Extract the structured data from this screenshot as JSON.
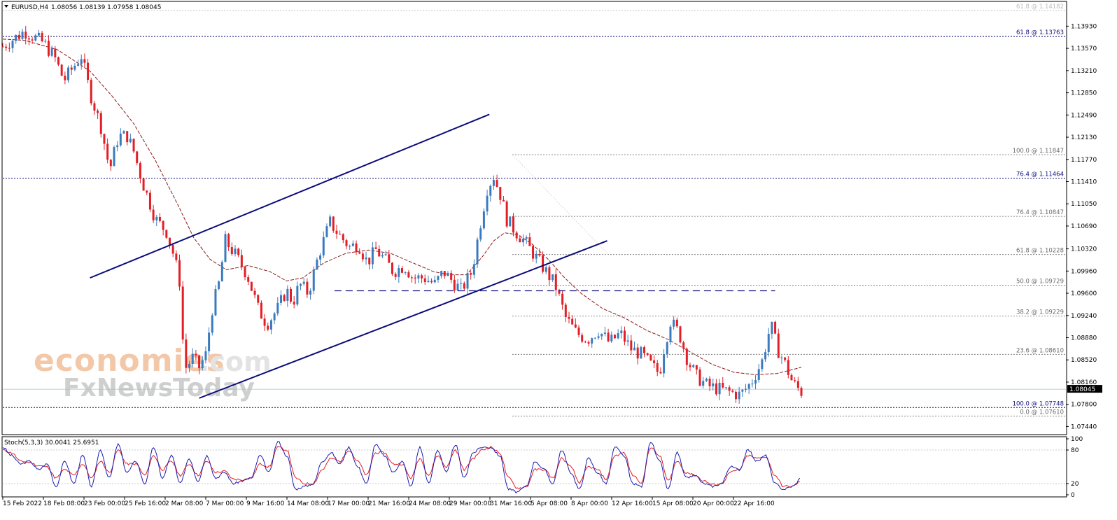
{
  "header": {
    "symbol": "EURUSD,H4",
    "ohlc": "1.08056 1.08139 1.07958 1.08045"
  },
  "watermark": {
    "line1": "economies",
    "line1_suffix": ".com",
    "line2": "FxNewsToday"
  },
  "colors": {
    "bull": "#3a7bbf",
    "bear": "#e21e26",
    "ma": "#8b1a1a",
    "channel": "#0b0b7a",
    "stoch_main": "#1c1cb0",
    "stoch_signal": "#e21e26",
    "fib": "#6b6b6b"
  },
  "chart_data": [
    {
      "type": "candlestick",
      "title": "EURUSD,H4",
      "ohlc_label": "1.08056 1.08139 1.07958 1.08045",
      "ylim": [
        1.0732,
        1.1432
      ],
      "y_ticks": [
        "1.13930",
        "1.13570",
        "1.13210",
        "1.12850",
        "1.12490",
        "1.12130",
        "1.11770",
        "1.11410",
        "1.11050",
        "1.10690",
        "1.10320",
        "1.09960",
        "1.09600",
        "1.09240",
        "1.08880",
        "1.08520",
        "1.08160",
        "1.07800",
        "1.07440"
      ],
      "x_ticks": [
        "15 Feb 2022",
        "18 Feb 08:00",
        "23 Feb 00:00",
        "25 Feb 16:00",
        "2 Mar 08:00",
        "7 Mar 00:00",
        "9 Mar 16:00",
        "14 Mar 08:00",
        "17 Mar 00:00",
        "21 Mar 16:00",
        "24 Mar 08:00",
        "29 Mar 00:00",
        "31 Mar 16:00",
        "5 Apr 08:00",
        "8 Apr 00:00",
        "12 Apr 16:00",
        "15 Apr 08:00",
        "20 Apr 00:00",
        "22 Apr 16:00"
      ],
      "current_price": "1.08045",
      "path": [
        [
          0,
          1.136
        ],
        [
          20,
          1.1385
        ],
        [
          38,
          1.1365
        ],
        [
          48,
          1.134
        ],
        [
          56,
          1.1305
        ],
        [
          66,
          1.133
        ],
        [
          72,
          1.1345
        ],
        [
          80,
          1.1285
        ],
        [
          90,
          1.123
        ],
        [
          98,
          1.116
        ],
        [
          106,
          1.1215
        ],
        [
          114,
          1.1215
        ],
        [
          120,
          1.119
        ],
        [
          128,
          1.114
        ],
        [
          140,
          1.108
        ],
        [
          150,
          1.106
        ],
        [
          157,
          1.102
        ],
        [
          162,
          1.098
        ],
        [
          164,
          1.09
        ],
        [
          168,
          1.084
        ],
        [
          174,
          1.0855
        ],
        [
          180,
          1.084
        ],
        [
          186,
          1.086
        ],
        [
          192,
          1.0935
        ],
        [
          198,
          1.0975
        ],
        [
          204,
          1.1045
        ],
        [
          214,
          1.102
        ],
        [
          224,
          1.099
        ],
        [
          234,
          1.0935
        ],
        [
          242,
          1.091
        ],
        [
          252,
          1.0935
        ],
        [
          260,
          1.0965
        ],
        [
          266,
          1.0945
        ],
        [
          272,
          1.0975
        ],
        [
          280,
          1.096
        ],
        [
          290,
          1.1025
        ],
        [
          300,
          1.1075
        ],
        [
          308,
          1.1055
        ],
        [
          318,
          1.1035
        ],
        [
          326,
          1.104
        ],
        [
          334,
          1.101
        ],
        [
          342,
          1.103
        ],
        [
          350,
          1.1015
        ],
        [
          358,
          1.0995
        ],
        [
          368,
          1.1005
        ],
        [
          376,
          1.0985
        ],
        [
          386,
          1.0985
        ],
        [
          396,
          1.0975
        ],
        [
          404,
          1.0995
        ],
        [
          412,
          1.098
        ],
        [
          420,
          1.0965
        ],
        [
          430,
          1.0995
        ],
        [
          438,
          1.1075
        ],
        [
          444,
          1.113
        ],
        [
          450,
          1.115
        ],
        [
          456,
          1.112
        ],
        [
          462,
          1.108
        ],
        [
          470,
          1.106
        ],
        [
          478,
          1.1045
        ],
        [
          486,
          1.1025
        ],
        [
          496,
          1.1
        ],
        [
          506,
          1.0975
        ],
        [
          516,
          1.092
        ],
        [
          526,
          1.0895
        ],
        [
          536,
          1.0885
        ],
        [
          546,
          1.09
        ],
        [
          556,
          1.088
        ],
        [
          566,
          1.0895
        ],
        [
          576,
          1.087
        ],
        [
          586,
          1.086
        ],
        [
          596,
          1.084
        ],
        [
          602,
          1.083
        ],
        [
          606,
          1.087
        ],
        [
          612,
          1.0915
        ],
        [
          620,
          1.0895
        ],
        [
          628,
          1.085
        ],
        [
          636,
          1.0825
        ],
        [
          646,
          1.081
        ],
        [
          656,
          1.0805
        ],
        [
          666,
          1.08
        ],
        [
          676,
          1.0795
        ],
        [
          686,
          1.0815
        ],
        [
          696,
          1.085
        ],
        [
          704,
          1.091
        ],
        [
          710,
          1.087
        ],
        [
          716,
          1.085
        ],
        [
          724,
          1.0815
        ],
        [
          732,
          1.08
        ]
      ],
      "ma_path": [
        [
          0,
          1.1372
        ],
        [
          20,
          1.137
        ],
        [
          50,
          1.1355
        ],
        [
          80,
          1.132
        ],
        [
          100,
          1.128
        ],
        [
          120,
          1.1235
        ],
        [
          140,
          1.1175
        ],
        [
          160,
          1.1105
        ],
        [
          175,
          1.105
        ],
        [
          190,
          1.1015
        ],
        [
          205,
          1.0998
        ],
        [
          225,
          1.1005
        ],
        [
          245,
          1.0995
        ],
        [
          260,
          1.098
        ],
        [
          275,
          1.0985
        ],
        [
          295,
          1.101
        ],
        [
          315,
          1.1025
        ],
        [
          335,
          1.103
        ],
        [
          355,
          1.1025
        ],
        [
          375,
          1.101
        ],
        [
          395,
          1.0995
        ],
        [
          410,
          1.099
        ],
        [
          425,
          1.099
        ],
        [
          440,
          1.102
        ],
        [
          450,
          1.1045
        ],
        [
          460,
          1.1058
        ],
        [
          472,
          1.1055
        ],
        [
          485,
          1.104
        ],
        [
          500,
          1.1015
        ],
        [
          515,
          1.0985
        ],
        [
          530,
          1.096
        ],
        [
          550,
          1.0935
        ],
        [
          570,
          1.092
        ],
        [
          590,
          1.09
        ],
        [
          610,
          1.0885
        ],
        [
          630,
          1.0865
        ],
        [
          650,
          1.0845
        ],
        [
          670,
          1.0832
        ],
        [
          690,
          1.0828
        ],
        [
          710,
          1.083
        ],
        [
          732,
          1.084
        ]
      ],
      "fibonacci_right": [
        "100.0 @ 1.11847",
        "76.4 @ 1.10847",
        "61.8 @ 1.10228",
        "50.0 @ 1.09729",
        "38.2 @ 1.09229",
        "23.6 @ 1.08610",
        "0.0 @ 1.07610"
      ],
      "fibonacci_major": [
        "61.8 @ 1.14182",
        "61.8 @ 1.13763",
        "76.4 @ 1.11464",
        "100.0 @ 1.07748"
      ],
      "levels": {
        "fib_right": [
          1.11847,
          1.10847,
          1.10228,
          1.09729,
          1.09229,
          1.0861,
          1.0761
        ],
        "fib_major": [
          1.14182,
          1.13763,
          1.11464,
          1.07748
        ],
        "dashed_support": 1.0964
      },
      "channel_lines": [
        [
          [
            80,
            1.0985
          ],
          [
            446,
            1.125
          ]
        ],
        [
          [
            180,
            1.079
          ],
          [
            554,
            1.1045
          ]
        ],
        [
          [
            304,
            1.0964
          ],
          [
            708,
            1.0964
          ]
        ]
      ]
    },
    {
      "type": "line",
      "title": "Stoch(5,3,3) 30.0041 25.6951",
      "ylim": [
        0,
        100
      ],
      "y_ticks": [
        "100",
        "80",
        "20",
        "0"
      ],
      "series": [
        {
          "name": "Stoch(5,3,3) main",
          "values": [
            85,
            70,
            55,
            60,
            45,
            55,
            15,
            60,
            20,
            70,
            15,
            80,
            30,
            90,
            40,
            60,
            20,
            85,
            30,
            70,
            20,
            65,
            25,
            70,
            30,
            40,
            20,
            25,
            30,
            70,
            40,
            95,
            70,
            10,
            15,
            20,
            60,
            75,
            55,
            85,
            50,
            20,
            90,
            70,
            40,
            60,
            15,
            85,
            20,
            80,
            40,
            90,
            30,
            75,
            85,
            85,
            70,
            10,
            5,
            15,
            60,
            45,
            20,
            80,
            40,
            10,
            65,
            40,
            20,
            85,
            70,
            20,
            15,
            95,
            60,
            10,
            75,
            30,
            35,
            20,
            15,
            20,
            50,
            45,
            80,
            60,
            70,
            20,
            10,
            15,
            30
          ]
        },
        {
          "name": "Stoch(5,3,3) signal",
          "values": [
            80,
            75,
            60,
            58,
            52,
            50,
            30,
            45,
            35,
            55,
            30,
            60,
            40,
            80,
            55,
            55,
            35,
            70,
            45,
            60,
            35,
            55,
            35,
            60,
            40,
            42,
            28,
            27,
            30,
            55,
            50,
            85,
            80,
            30,
            20,
            20,
            45,
            65,
            60,
            80,
            60,
            35,
            75,
            75,
            55,
            55,
            30,
            65,
            35,
            70,
            50,
            80,
            45,
            65,
            80,
            85,
            75,
            30,
            12,
            14,
            45,
            45,
            30,
            65,
            50,
            22,
            50,
            45,
            28,
            70,
            75,
            35,
            22,
            85,
            70,
            25,
            60,
            40,
            35,
            25,
            18,
            20,
            40,
            45,
            70,
            65,
            68,
            35,
            15,
            15,
            25
          ]
        }
      ]
    }
  ]
}
